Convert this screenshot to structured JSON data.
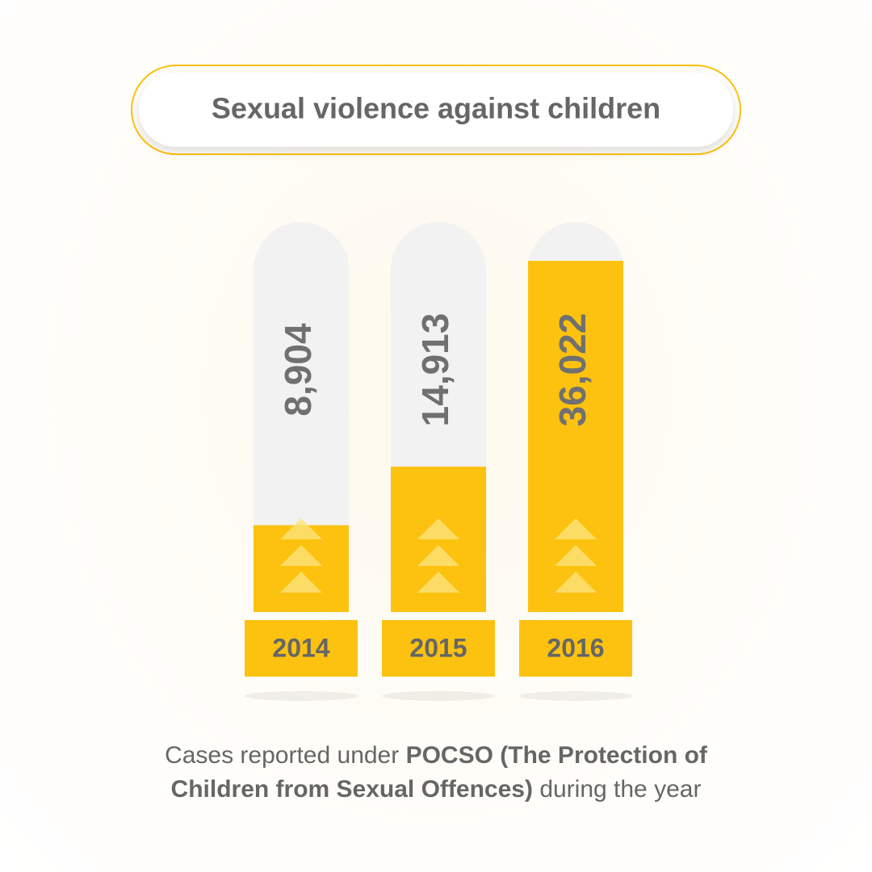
{
  "chart_data": {
    "type": "bar",
    "title": "Sexual violence against children",
    "categories": [
      "2014",
      "2015",
      "2016"
    ],
    "values": [
      8904,
      14913,
      36022
    ],
    "value_labels": [
      "8,904",
      "14,913",
      "36,022"
    ],
    "color": "#fcc20f",
    "ylim": [
      0,
      40000
    ],
    "note": {
      "text_1": "Cases reported under",
      "bold_1": "POCSO (The Protection of",
      "bold_2": "Children from Sexual Offences)",
      "text_2": "during the year"
    }
  }
}
